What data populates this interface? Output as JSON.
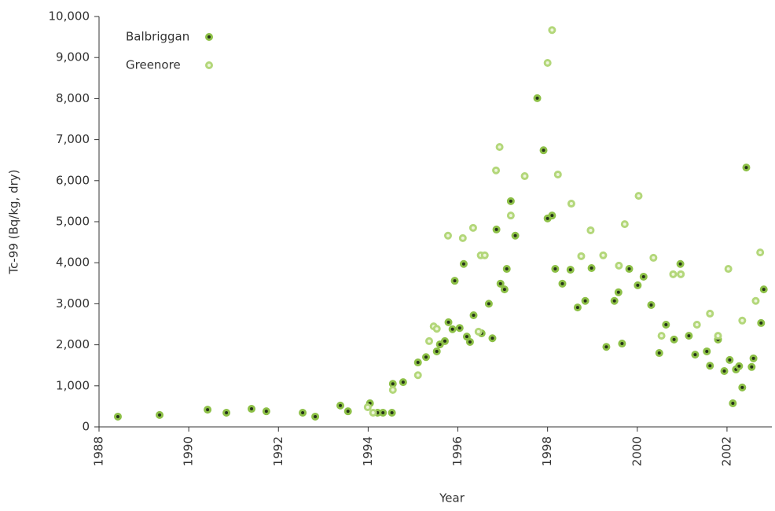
{
  "chart_data": {
    "type": "scatter",
    "x_label": "Year",
    "y_label": "Tc-99 (Bq/kg, dry)",
    "xlim": [
      1988,
      2003
    ],
    "ylim": [
      0,
      10000
    ],
    "xticks": [
      1988,
      1990,
      1992,
      1994,
      1996,
      1998,
      2000,
      2002
    ],
    "yticks": [
      0,
      {
        "value": 1000,
        "label": "1,000"
      },
      {
        "value": 2000,
        "label": "2,000"
      },
      {
        "value": 3000,
        "label": "3,000"
      },
      {
        "value": 4000,
        "label": "4,000"
      },
      {
        "value": 5000,
        "label": "5,000"
      },
      {
        "value": 6000,
        "label": "6,000"
      },
      {
        "value": 7000,
        "label": "7,000"
      },
      {
        "value": 8000,
        "label": "8,000"
      },
      {
        "value": 9000,
        "label": "9,000"
      },
      {
        "value": 10000,
        "label": "10,000"
      }
    ],
    "legend": "top-left",
    "series": [
      {
        "name": "Balbriggan",
        "color": "#8dc047",
        "center": "#26331a",
        "x": [
          1988.42,
          1989.35,
          1990.42,
          1990.84,
          1991.4,
          1991.73,
          1992.54,
          1992.82,
          1993.38,
          1993.55,
          1994.04,
          1994.21,
          1994.33,
          1994.53,
          1994.55,
          1994.78,
          1995.11,
          1995.29,
          1995.53,
          1995.6,
          1995.71,
          1995.79,
          1995.88,
          1995.93,
          1996.04,
          1996.13,
          1996.2,
          1996.27,
          1996.35,
          1996.53,
          1996.69,
          1996.77,
          1996.86,
          1996.95,
          1997.04,
          1997.09,
          1997.18,
          1997.28,
          1997.77,
          1997.91,
          1998.0,
          1998.1,
          1998.17,
          1998.33,
          1998.51,
          1998.67,
          1998.84,
          1998.98,
          1999.31,
          1999.49,
          1999.58,
          1999.66,
          1999.82,
          2000.01,
          2000.14,
          2000.31,
          2000.49,
          2000.64,
          2000.82,
          2000.96,
          2001.15,
          2001.29,
          2001.55,
          2001.62,
          2001.8,
          2001.94,
          2002.06,
          2002.13,
          2002.2,
          2002.27,
          2002.34,
          2002.43,
          2002.55,
          2002.59,
          2002.76,
          2002.82
        ],
        "values": [
          250,
          290,
          420,
          345,
          440,
          380,
          345,
          250,
          520,
          380,
          575,
          345,
          345,
          345,
          1050,
          1090,
          1570,
          1700,
          1840,
          2010,
          2090,
          2550,
          2380,
          3560,
          2410,
          3970,
          2200,
          2070,
          2720,
          2280,
          3000,
          2160,
          4810,
          3490,
          3350,
          3850,
          5500,
          4660,
          8010,
          6740,
          5080,
          5150,
          3850,
          3490,
          3830,
          2910,
          3070,
          3870,
          1950,
          3070,
          3280,
          2030,
          3850,
          3450,
          3660,
          2970,
          1800,
          2490,
          2130,
          3970,
          2220,
          1760,
          1840,
          1490,
          2130,
          1360,
          1630,
          575,
          1400,
          1480,
          960,
          6320,
          1460,
          1670,
          2530,
          3350
        ]
      },
      {
        "name": "Greenore",
        "color": "#b3d77a",
        "center": "#eef6dc",
        "x": [
          1993.99,
          1994.11,
          1994.55,
          1995.11,
          1995.36,
          1995.46,
          1995.53,
          1995.78,
          1996.11,
          1996.34,
          1996.46,
          1996.51,
          1996.6,
          1996.85,
          1996.93,
          1997.18,
          1997.49,
          1998.0,
          1998.1,
          1998.23,
          1998.53,
          1998.75,
          1998.96,
          1999.24,
          1999.59,
          1999.72,
          2000.03,
          2000.36,
          2000.54,
          2000.8,
          2000.97,
          2001.33,
          2001.62,
          2001.8,
          2002.03,
          2002.34,
          2002.64,
          2002.74
        ],
        "values": [
          480,
          345,
          900,
          1260,
          2090,
          2450,
          2390,
          4660,
          4600,
          4850,
          2320,
          4180,
          4180,
          6250,
          6820,
          5150,
          6110,
          8870,
          9670,
          6150,
          5440,
          4160,
          4790,
          4180,
          3930,
          4940,
          5630,
          4120,
          2220,
          3720,
          3720,
          2490,
          2760,
          2220,
          3850,
          2590,
          3070,
          4250
        ]
      }
    ]
  }
}
